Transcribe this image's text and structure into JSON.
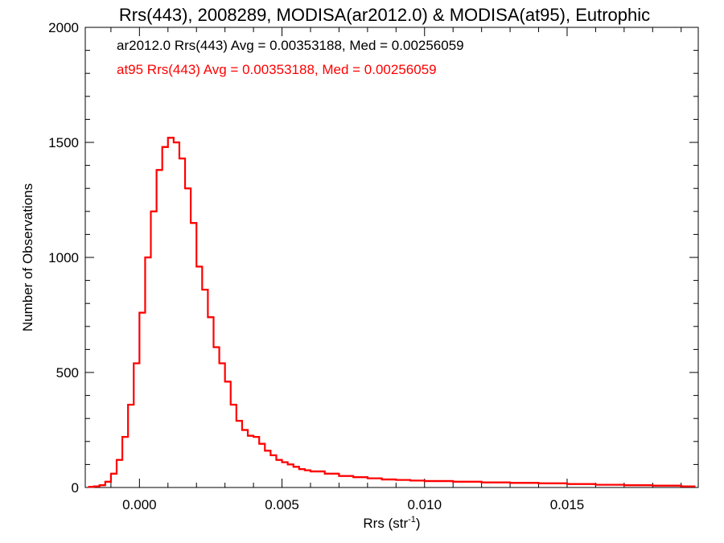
{
  "chart_data": {
    "type": "line",
    "title": "Rrs(443), 2008289, MODISA(ar2012.0) & MODISA(at95), Eutrophic",
    "xlabel_main": "Rrs (str",
    "xlabel_sup": "-1",
    "xlabel_close": ")",
    "ylabel": "Number of Observations",
    "xlim": [
      -0.0019,
      0.0196
    ],
    "ylim": [
      0,
      2000
    ],
    "x_ticks": [
      0.0,
      0.005,
      0.01,
      0.015
    ],
    "x_tick_labels": [
      "0.000",
      "0.005",
      "0.010",
      "0.015"
    ],
    "y_ticks": [
      0,
      500,
      1000,
      1500,
      2000
    ],
    "y_tick_labels": [
      "0",
      "500",
      "1000",
      "1500",
      "2000"
    ],
    "grid": false,
    "annotations": [
      {
        "text": "ar2012.0 Rrs(443) Avg = 0.00353188, Med = 0.00256059",
        "color": "#000000"
      },
      {
        "text": "at95 Rrs(443) Avg = 0.00353188, Med = 0.00256059",
        "color": "#ff0000"
      }
    ],
    "series": [
      {
        "color": "#ff0000",
        "x": [
          -0.0018,
          -0.0016,
          -0.0014,
          -0.0012,
          -0.001,
          -0.0008,
          -0.0006,
          -0.0004,
          -0.0002,
          0.0,
          0.0002,
          0.0004,
          0.0006,
          0.0008,
          0.001,
          0.0012,
          0.0014,
          0.0016,
          0.0018,
          0.002,
          0.0022,
          0.0024,
          0.0026,
          0.0028,
          0.003,
          0.0032,
          0.0034,
          0.0036,
          0.0038,
          0.004,
          0.0042,
          0.0044,
          0.0046,
          0.0048,
          0.005,
          0.0052,
          0.0054,
          0.0056,
          0.0058,
          0.006,
          0.0065,
          0.007,
          0.0075,
          0.008,
          0.0085,
          0.009,
          0.0095,
          0.01,
          0.011,
          0.012,
          0.013,
          0.014,
          0.015,
          0.016,
          0.017,
          0.018,
          0.019
        ],
        "y": [
          3,
          5,
          10,
          25,
          60,
          120,
          220,
          360,
          540,
          760,
          1000,
          1200,
          1380,
          1480,
          1520,
          1500,
          1430,
          1300,
          1150,
          960,
          860,
          740,
          610,
          540,
          460,
          360,
          290,
          250,
          225,
          220,
          190,
          160,
          140,
          120,
          110,
          100,
          90,
          80,
          75,
          70,
          60,
          50,
          45,
          40,
          35,
          33,
          30,
          28,
          25,
          22,
          20,
          18,
          15,
          12,
          10,
          8,
          5
        ]
      }
    ]
  }
}
